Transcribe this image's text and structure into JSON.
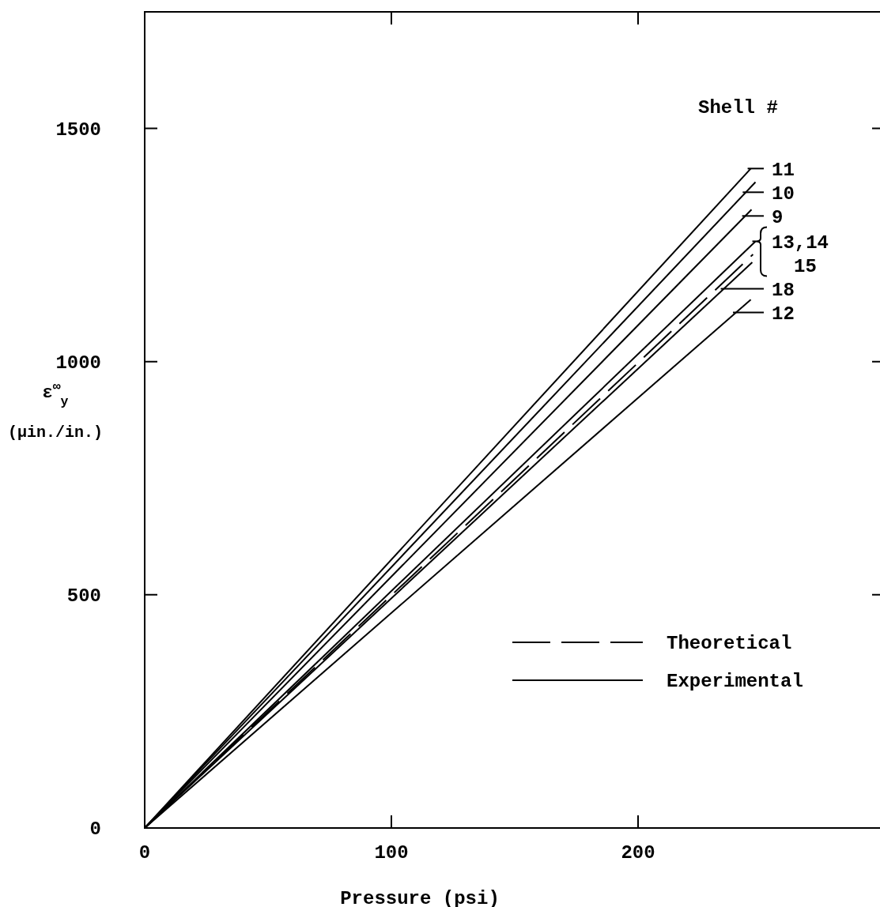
{
  "chart_data": {
    "type": "line",
    "xlabel": "Pressure (psi)",
    "ylabel": "ε$^{∞}$$_{y}$ (μin./in.)",
    "legend_title": "Shell #",
    "xlim": [
      0,
      300
    ],
    "ylim": [
      0,
      1750
    ],
    "xticks": [
      0,
      100,
      200
    ],
    "yticks": [
      0,
      500,
      1000,
      1500
    ],
    "grid": false,
    "legend": "top right",
    "marker": "none",
    "annotations": [
      "Theoretical",
      "Experimental"
    ],
    "series": [
      {
        "name": "11",
        "color": "#000000",
        "x": [
          0,
          245.7
        ],
        "values": [
          0,
          1414
        ],
        "line_style": "solid"
      },
      {
        "name": "10",
        "color": "#000000",
        "x": [
          0,
          247.6
        ],
        "values": [
          0,
          1385
        ],
        "line_style": "solid"
      },
      {
        "name": "9",
        "color": "#000000",
        "x": [
          0,
          246
        ],
        "values": [
          0,
          1326
        ],
        "line_style": "solid"
      },
      {
        "name": "13,14 15",
        "color": "#000000",
        "x": [
          0,
          247.6
        ],
        "values": [
          0,
          1258
        ],
        "line_style": "solid"
      },
      {
        "color": "#000000",
        "x": [
          0,
          246.6
        ],
        "values": [
          0,
          1230
        ],
        "line_style": "dashed"
      },
      {
        "name": "18",
        "color": "#000000",
        "x": [
          0,
          246.3
        ],
        "values": [
          0,
          1213
        ],
        "line_style": "solid"
      },
      {
        "name": "12",
        "color": "#000000",
        "x": [
          0,
          245.7
        ],
        "values": [
          0,
          1133
        ],
        "line_style": "solid"
      }
    ]
  }
}
